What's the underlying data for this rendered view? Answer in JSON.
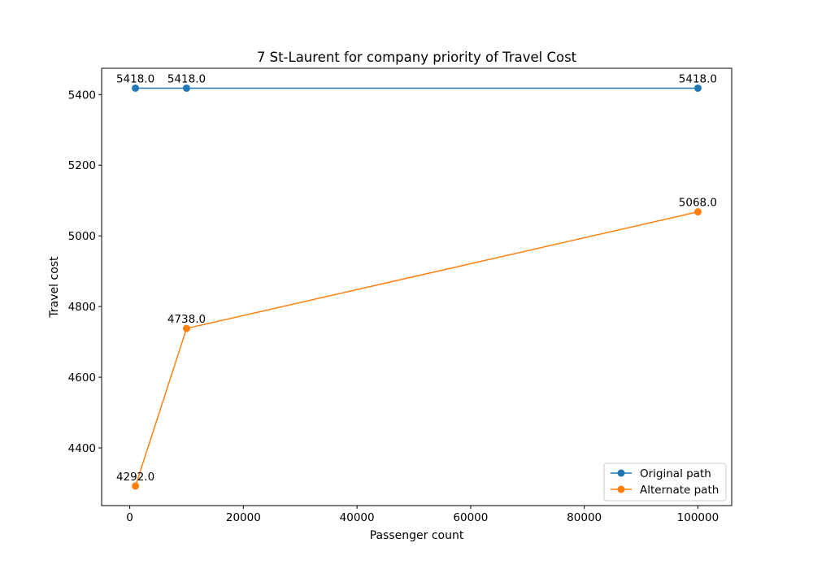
{
  "chart_data": {
    "type": "line",
    "title": "7 St-Laurent for company priority of Travel Cost",
    "xlabel": "Passenger count",
    "ylabel": "Travel cost",
    "xlim": [
      -4950,
      105950
    ],
    "ylim": [
      4236.7,
      5474.3
    ],
    "xticks": [
      0,
      20000,
      40000,
      60000,
      80000,
      100000
    ],
    "yticks": [
      4400,
      4600,
      4800,
      5000,
      5200,
      5400
    ],
    "grid": false,
    "legend_position": "lower right",
    "series": [
      {
        "name": "Original path",
        "color": "#1f77b4",
        "x": [
          1000,
          10000,
          100000
        ],
        "y": [
          5418.0,
          5418.0,
          5418.0
        ],
        "labels": [
          "5418.0",
          "5418.0",
          "5418.0"
        ]
      },
      {
        "name": "Alternate path",
        "color": "#ff7f0e",
        "x": [
          1000,
          10000,
          100000
        ],
        "y": [
          4292.0,
          4738.0,
          5068.0
        ],
        "labels": [
          "4292.0",
          "4738.0",
          "5068.0"
        ]
      }
    ]
  }
}
